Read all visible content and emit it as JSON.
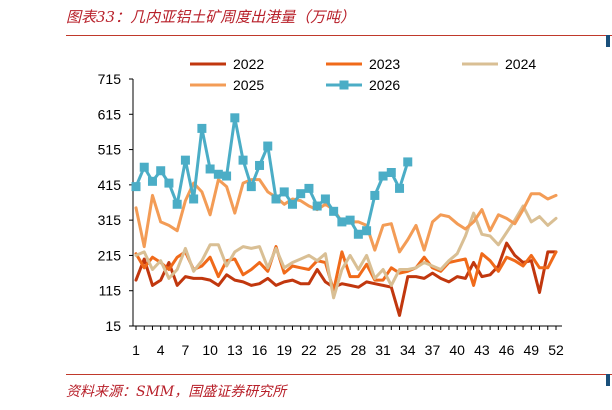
{
  "header": {
    "title": "图表33：几内亚铝土矿周度出港量（万吨）"
  },
  "footer": {
    "source": "资料来源：SMM，国盛证券研究所"
  },
  "chart_data": {
    "type": "line",
    "title": "图表33：几内亚铝土矿周度出港量（万吨）",
    "xlabel": "",
    "ylabel": "",
    "ylim": [
      15,
      715
    ],
    "yticks": [
      15,
      115,
      215,
      315,
      415,
      515,
      615,
      715
    ],
    "xlim": [
      1,
      52
    ],
    "xticks": [
      1,
      4,
      7,
      10,
      13,
      16,
      19,
      22,
      25,
      28,
      31,
      34,
      37,
      40,
      43,
      46,
      49,
      52
    ],
    "grid": false,
    "legend_position": "top",
    "series": [
      {
        "name": "2022",
        "color": "#c1370e",
        "marker": false,
        "values": [
          145,
          205,
          130,
          145,
          195,
          130,
          155,
          150,
          150,
          145,
          130,
          160,
          145,
          140,
          130,
          135,
          150,
          130,
          140,
          145,
          135,
          135,
          175,
          140,
          125,
          135,
          130,
          125,
          140,
          135,
          130,
          125,
          45,
          155,
          155,
          150,
          165,
          150,
          140,
          155,
          150,
          195,
          155,
          160,
          185,
          250,
          215,
          195,
          200,
          110,
          225,
          225
        ]
      },
      {
        "name": "2023",
        "color": "#f06a1a",
        "marker": false,
        "values": [
          220,
          180,
          210,
          195,
          175,
          210,
          225,
          175,
          185,
          210,
          155,
          200,
          205,
          160,
          175,
          195,
          170,
          240,
          165,
          185,
          180,
          175,
          200,
          195,
          115,
          225,
          155,
          155,
          190,
          145,
          145,
          180,
          165,
          170,
          180,
          210,
          180,
          170,
          195,
          200,
          205,
          130,
          220,
          200,
          170,
          210,
          200,
          185,
          215,
          180,
          180,
          225
        ]
      },
      {
        "name": "2024",
        "color": "#d9bf94",
        "marker": false,
        "values": [
          215,
          225,
          175,
          200,
          150,
          175,
          235,
          170,
          200,
          245,
          245,
          185,
          225,
          240,
          235,
          240,
          180,
          235,
          180,
          195,
          205,
          215,
          200,
          220,
          95,
          175,
          215,
          175,
          215,
          150,
          175,
          130,
          175,
          175,
          180,
          195,
          185,
          175,
          200,
          220,
          270,
          335,
          275,
          270,
          245,
          280,
          315,
          355,
          310,
          325,
          300,
          320
        ]
      },
      {
        "name": "2025",
        "color": "#f39c56",
        "marker": false,
        "values": [
          350,
          240,
          385,
          310,
          300,
          285,
          370,
          420,
          395,
          330,
          430,
          410,
          335,
          420,
          430,
          430,
          395,
          380,
          360,
          375,
          370,
          355,
          345,
          360,
          345,
          310,
          310,
          310,
          300,
          230,
          300,
          305,
          225,
          260,
          300,
          230,
          310,
          330,
          325,
          305,
          290,
          310,
          345,
          285,
          330,
          320,
          305,
          345,
          390,
          390,
          375,
          385
        ]
      },
      {
        "name": "2026",
        "color": "#4badc6",
        "marker": true,
        "values": [
          410,
          465,
          425,
          455,
          420,
          360,
          485,
          375,
          575,
          460,
          445,
          440,
          605,
          485,
          410,
          470,
          525,
          375,
          395,
          360,
          390,
          405,
          355,
          375,
          340,
          310,
          315,
          275,
          285,
          385,
          440,
          450,
          405,
          480
        ]
      }
    ]
  }
}
